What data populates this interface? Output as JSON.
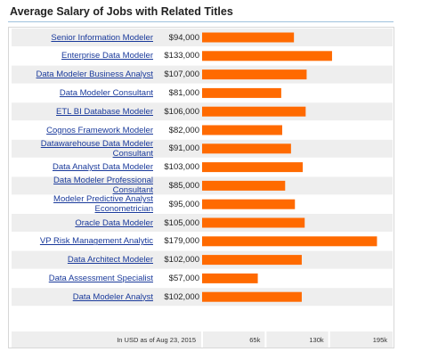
{
  "chart_data": {
    "type": "bar",
    "title": "Average Salary of Jobs with Related Titles",
    "categories": [
      "Senior Information Modeler",
      "Enterprise Data Modeler",
      "Data Modeler Business Analyst",
      "Data Modeler Consultant",
      "ETL BI Database Modeler",
      "Cognos Framework Modeler",
      "Datawarehouse Data Modeler Consultant",
      "Data Analyst Data Modeler",
      "Data Modeler Professional Consultant",
      "Modeler Predictive Analyst Econometrician",
      "Oracle Data Modeler",
      "VP Risk Management Analytic",
      "Data Architect Modeler",
      "Data Assessment Specialist",
      "Data Modeler Analyst"
    ],
    "values": [
      94000,
      133000,
      107000,
      81000,
      106000,
      82000,
      91000,
      103000,
      85000,
      95000,
      105000,
      179000,
      102000,
      57000,
      102000
    ],
    "value_labels": [
      "$94,000",
      "$133,000",
      "$107,000",
      "$81,000",
      "$106,000",
      "$82,000",
      "$91,000",
      "$103,000",
      "$85,000",
      "$95,000",
      "$105,000",
      "$179,000",
      "$102,000",
      "$57,000",
      "$102,000"
    ],
    "xlim": [
      0,
      195000
    ],
    "ticks": [
      65000,
      130000,
      195000
    ],
    "tick_labels": [
      "65k",
      "130k",
      "195k"
    ],
    "footnote": "In USD as of Aug 23, 2015",
    "orientation": "horizontal",
    "bar_color": "#ff6a00",
    "label_color": "#1a3a9b",
    "row_colors": [
      "#eeeeee",
      "#ffffff"
    ]
  }
}
